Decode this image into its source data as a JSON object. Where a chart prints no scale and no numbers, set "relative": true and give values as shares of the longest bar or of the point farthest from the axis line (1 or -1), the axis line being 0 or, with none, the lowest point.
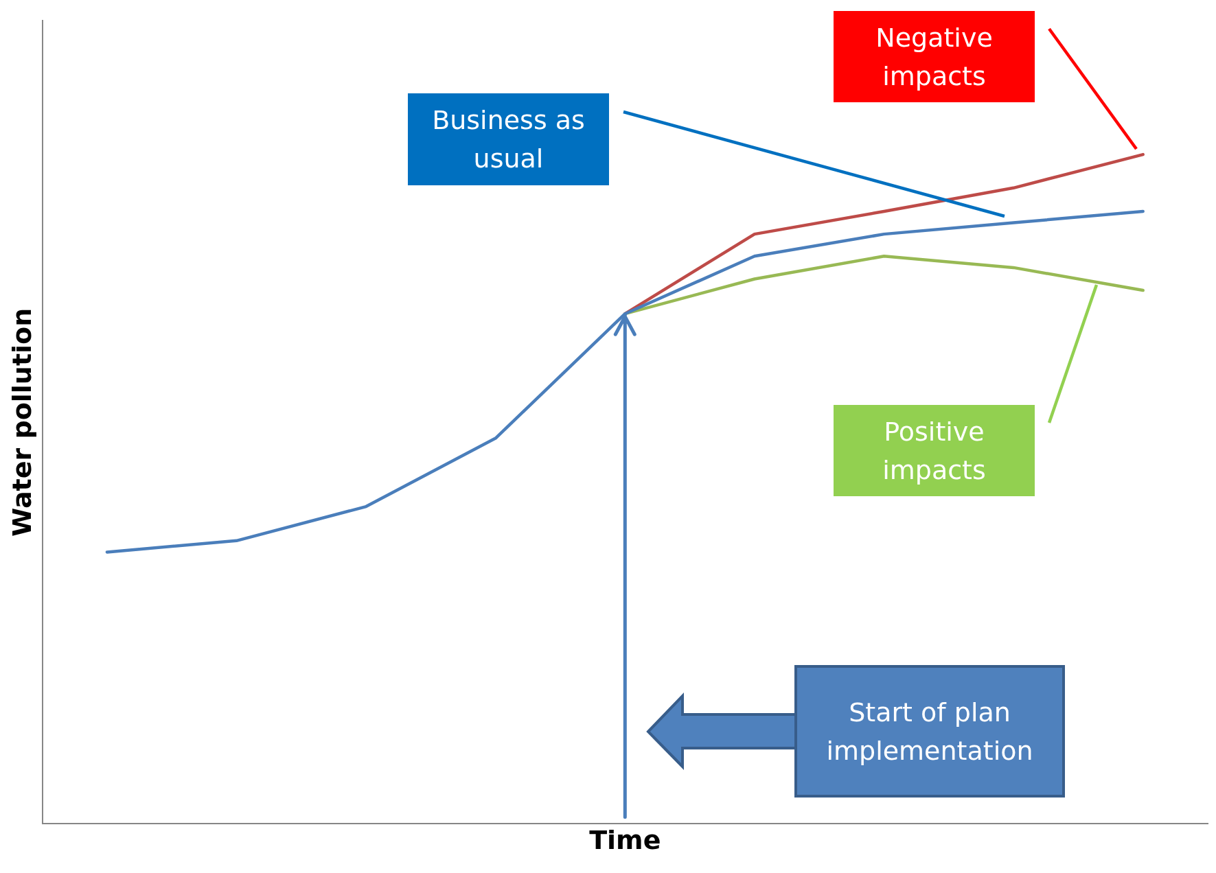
{
  "chart_data": {
    "type": "line",
    "relative": true,
    "xlabel": "Time",
    "ylabel": "Water pollution",
    "categories": [
      null,
      null,
      null,
      null,
      null,
      null,
      null,
      null,
      null
    ],
    "series": [
      {
        "color": "#4a7ebb",
        "values": [
          0.406,
          0.423,
          0.474,
          0.576,
          0.762,
          0.848,
          0.881,
          0.898,
          0.915
        ]
      },
      {
        "color": "#be4b48",
        "values": [
          null,
          null,
          null,
          null,
          0.762,
          0.881,
          0.915,
          0.95,
          1
        ]
      },
      {
        "color": "#98b954",
        "values": [
          null,
          null,
          null,
          null,
          0.762,
          0.814,
          0.848,
          0.831,
          0.797
        ]
      }
    ],
    "marker": "none",
    "grid": false,
    "legend": false,
    "annotations": [
      "Business as usual",
      "Negative impacts",
      "Positive impacts",
      "Start of plan implementation"
    ]
  }
}
